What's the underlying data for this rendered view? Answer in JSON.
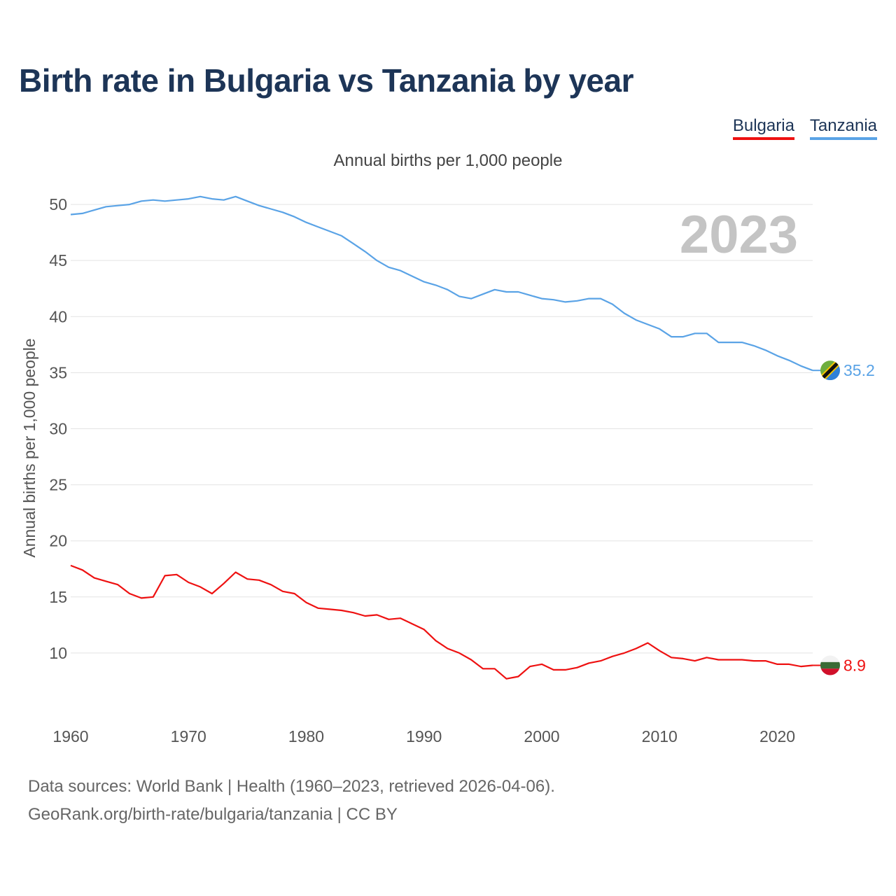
{
  "title": "Birth rate in Bulgaria vs Tanzania by year",
  "legend": [
    {
      "label": "Bulgaria",
      "color": "#ee1111"
    },
    {
      "label": "Tanzania",
      "color": "#5aa3e6"
    }
  ],
  "footer": {
    "line1": "Data sources: World Bank | Health (1960–2023, retrieved 2026-04-06).",
    "line2": "GeoRank.org/birth-rate/bulgaria/tanzania | CC BY"
  },
  "chart_data": {
    "type": "line",
    "title": "Annual births per 1,000 people",
    "xlabel": "",
    "ylabel": "Annual births per 1,000 people",
    "year_watermark": "2023",
    "xlim": [
      1960,
      2023
    ],
    "ylim": [
      5,
      53
    ],
    "x_ticks": [
      "1960",
      "1970",
      "1980",
      "1990",
      "2000",
      "2010",
      "2020"
    ],
    "y_ticks": [
      "10",
      "15",
      "20",
      "25",
      "30",
      "35",
      "40",
      "45",
      "50"
    ],
    "x": [
      1960,
      1961,
      1962,
      1963,
      1964,
      1965,
      1966,
      1967,
      1968,
      1969,
      1970,
      1971,
      1972,
      1973,
      1974,
      1975,
      1976,
      1977,
      1978,
      1979,
      1980,
      1981,
      1982,
      1983,
      1984,
      1985,
      1986,
      1987,
      1988,
      1989,
      1990,
      1991,
      1992,
      1993,
      1994,
      1995,
      1996,
      1997,
      1998,
      1999,
      2000,
      2001,
      2002,
      2003,
      2004,
      2005,
      2006,
      2007,
      2008,
      2009,
      2010,
      2011,
      2012,
      2013,
      2014,
      2015,
      2016,
      2017,
      2018,
      2019,
      2020,
      2021,
      2022,
      2023
    ],
    "series": [
      {
        "name": "Bulgaria",
        "color": "#ee1111",
        "end_label": "8.9",
        "values": [
          17.8,
          17.4,
          16.7,
          16.4,
          16.1,
          15.3,
          14.9,
          15.0,
          16.9,
          17.0,
          16.3,
          15.9,
          15.3,
          16.2,
          17.2,
          16.6,
          16.5,
          16.1,
          15.5,
          15.3,
          14.5,
          14.0,
          13.9,
          13.8,
          13.6,
          13.3,
          13.4,
          13.0,
          13.1,
          12.6,
          12.1,
          11.1,
          10.4,
          10.0,
          9.4,
          8.6,
          8.6,
          7.7,
          7.9,
          8.8,
          9.0,
          8.5,
          8.5,
          8.7,
          9.1,
          9.3,
          9.7,
          10.0,
          10.4,
          10.9,
          10.2,
          9.6,
          9.5,
          9.3,
          9.6,
          9.4,
          9.4,
          9.4,
          9.3,
          9.3,
          9.0,
          9.0,
          8.8,
          8.9
        ]
      },
      {
        "name": "Tanzania",
        "color": "#5aa3e6",
        "end_label": "35.2",
        "values": [
          49.1,
          49.2,
          49.5,
          49.8,
          49.9,
          50.0,
          50.3,
          50.4,
          50.3,
          50.4,
          50.5,
          50.7,
          50.5,
          50.4,
          50.7,
          50.3,
          49.9,
          49.6,
          49.3,
          48.9,
          48.4,
          48.0,
          47.6,
          47.2,
          46.5,
          45.8,
          45.0,
          44.4,
          44.1,
          43.6,
          43.1,
          42.8,
          42.4,
          41.8,
          41.6,
          42.0,
          42.4,
          42.2,
          42.2,
          41.9,
          41.6,
          41.5,
          41.3,
          41.4,
          41.6,
          41.6,
          41.1,
          40.3,
          39.7,
          39.3,
          38.9,
          38.2,
          38.2,
          38.5,
          38.5,
          37.7,
          37.7,
          37.7,
          37.4,
          37.0,
          36.5,
          36.1,
          35.6,
          35.2
        ]
      }
    ]
  }
}
